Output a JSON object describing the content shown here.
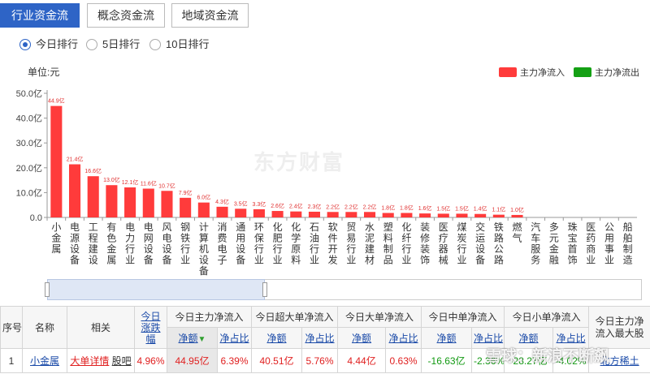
{
  "tabs": [
    {
      "label": "行业资金流",
      "active": true
    },
    {
      "label": "概念资金流",
      "active": false
    },
    {
      "label": "地域资金流",
      "active": false
    }
  ],
  "radios": [
    {
      "label": "今日排行",
      "checked": true
    },
    {
      "label": "5日排行",
      "checked": false
    },
    {
      "label": "10日排行",
      "checked": false
    }
  ],
  "chart": {
    "unit_label": "单位:元",
    "legend": [
      {
        "label": "主力净流入",
        "color": "#ff3b3b"
      },
      {
        "label": "主力净流出",
        "color": "#14a014"
      }
    ],
    "watermark": "东方财富"
  },
  "chart_data": {
    "type": "bar",
    "ylabel": "单位:元",
    "ylim": [
      0,
      50
    ],
    "yticks": [
      "0.0",
      "10.0亿",
      "20.0亿",
      "30.0亿",
      "40.0亿",
      "50.0亿"
    ],
    "grid": false,
    "legend_position": "top-right",
    "categories": [
      "小金属",
      "电源设备",
      "工程建设",
      "有色金属",
      "电力行业",
      "电网设备",
      "风电设备",
      "钢铁行业",
      "计算机设备",
      "消费电子",
      "通用设备",
      "环保行业",
      "化肥行业",
      "化学原料",
      "石油行业",
      "软件开发",
      "贸易行业",
      "水泥建材",
      "塑料制品",
      "化纤行业",
      "装修装饰",
      "医疗器械",
      "煤炭行业",
      "交运设备",
      "铁路公路",
      "燃气",
      "汽车服务",
      "多元金融",
      "珠宝首饰",
      "医药商业",
      "公用事业",
      "船舶制造"
    ],
    "values": [
      44.9,
      21.4,
      16.6,
      13.0,
      12.1,
      11.6,
      10.7,
      7.9,
      6.0,
      4.3,
      3.5,
      3.3,
      2.6,
      2.4,
      2.3,
      2.2,
      2.2,
      2.2,
      1.8,
      1.8,
      1.6,
      1.5,
      1.5,
      1.4,
      1.1,
      1.0,
      0,
      0,
      0,
      0,
      0,
      0
    ],
    "value_labels": [
      "44.9亿",
      "21.4亿",
      "16.6亿",
      "13.0亿",
      "12.1亿",
      "11.6亿",
      "10.7亿",
      "7.9亿",
      "6.0亿",
      "4.3亿",
      "3.5亿",
      "3.3亿",
      "2.6亿",
      "2.4亿",
      "2.3亿",
      "2.2亿",
      "2.2亿",
      "2.2亿",
      "1.8亿",
      "1.8亿",
      "1.6亿",
      "1.5亿",
      "1.5亿",
      "1.4亿",
      "1.1亿",
      "1.0亿",
      "",
      "",
      "",
      "",
      "",
      ""
    ],
    "bar_color": "#ff3b3b"
  },
  "table": {
    "headers": {
      "seq": "序号",
      "name": "名称",
      "related": "相关",
      "change": "今日涨跌幅",
      "main_inflow": "今日主力净流入",
      "xl_inflow": "今日超大单净流入",
      "l_inflow": "今日大单净流入",
      "m_inflow": "今日中单净流入",
      "s_inflow": "今日小单净流入",
      "max_stock": "今日主力净流入最大股",
      "amount": "净额",
      "ratio": "净占比"
    },
    "rows": [
      {
        "seq": "1",
        "name": "小金属",
        "detail": "大单详情",
        "forum": "股吧",
        "change": "4.96%",
        "main_amt": "44.95亿",
        "main_ratio": "6.39%",
        "xl_amt": "40.51亿",
        "xl_ratio": "5.76%",
        "l_amt": "4.44亿",
        "l_ratio": "0.63%",
        "m_amt": "-16.63亿",
        "m_ratio": "-2.36%",
        "s_amt": "-28.27亿",
        "s_ratio": "-4.02%",
        "max_stock": "北方稀土"
      }
    ]
  },
  "xueqiu_watermark": "雪球：新浪不断飙"
}
